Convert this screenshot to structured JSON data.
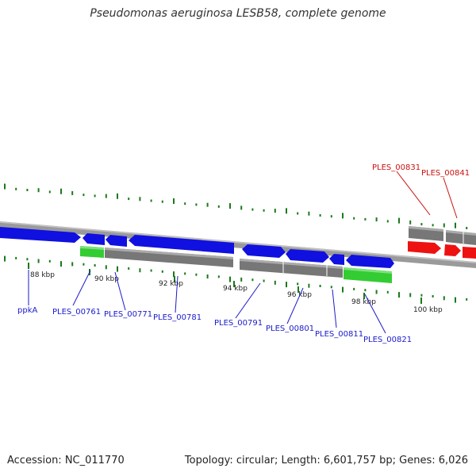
{
  "title": "Pseudomonas aeruginosa LESB58, complete genome",
  "accession": "Accession: NC_011770",
  "summary": "Topology: circular; Length: 6,601,757 bp; Genes: 6,026",
  "colors": {
    "backbone": "#8c8c8c",
    "forward_gene": "#1010e0",
    "reverse_grey": "#777777",
    "rrna_green": "#33cc33",
    "trna_red": "#ee1111",
    "gc_tick": "#1a7a1a",
    "label_blue": "#1a1acc",
    "label_red": "#cc1111"
  },
  "scale_labels": [
    "88 kbp",
    "90 kbp",
    "92 kbp",
    "94 kbp",
    "96 kbp",
    "98 kbp",
    "100 kbp"
  ],
  "gene_labels": [
    {
      "text": "ppkA",
      "color": "blue"
    },
    {
      "text": "PLES_00761",
      "color": "blue"
    },
    {
      "text": "PLES_00771",
      "color": "blue"
    },
    {
      "text": "PLES_00781",
      "color": "blue"
    },
    {
      "text": "PLES_00791",
      "color": "blue"
    },
    {
      "text": "PLES_00801",
      "color": "blue"
    },
    {
      "text": "PLES_00811",
      "color": "blue"
    },
    {
      "text": "PLES_00821",
      "color": "blue"
    },
    {
      "text": "PLES_00831",
      "color": "red"
    },
    {
      "text": "PLES_00841",
      "color": "red"
    }
  ]
}
